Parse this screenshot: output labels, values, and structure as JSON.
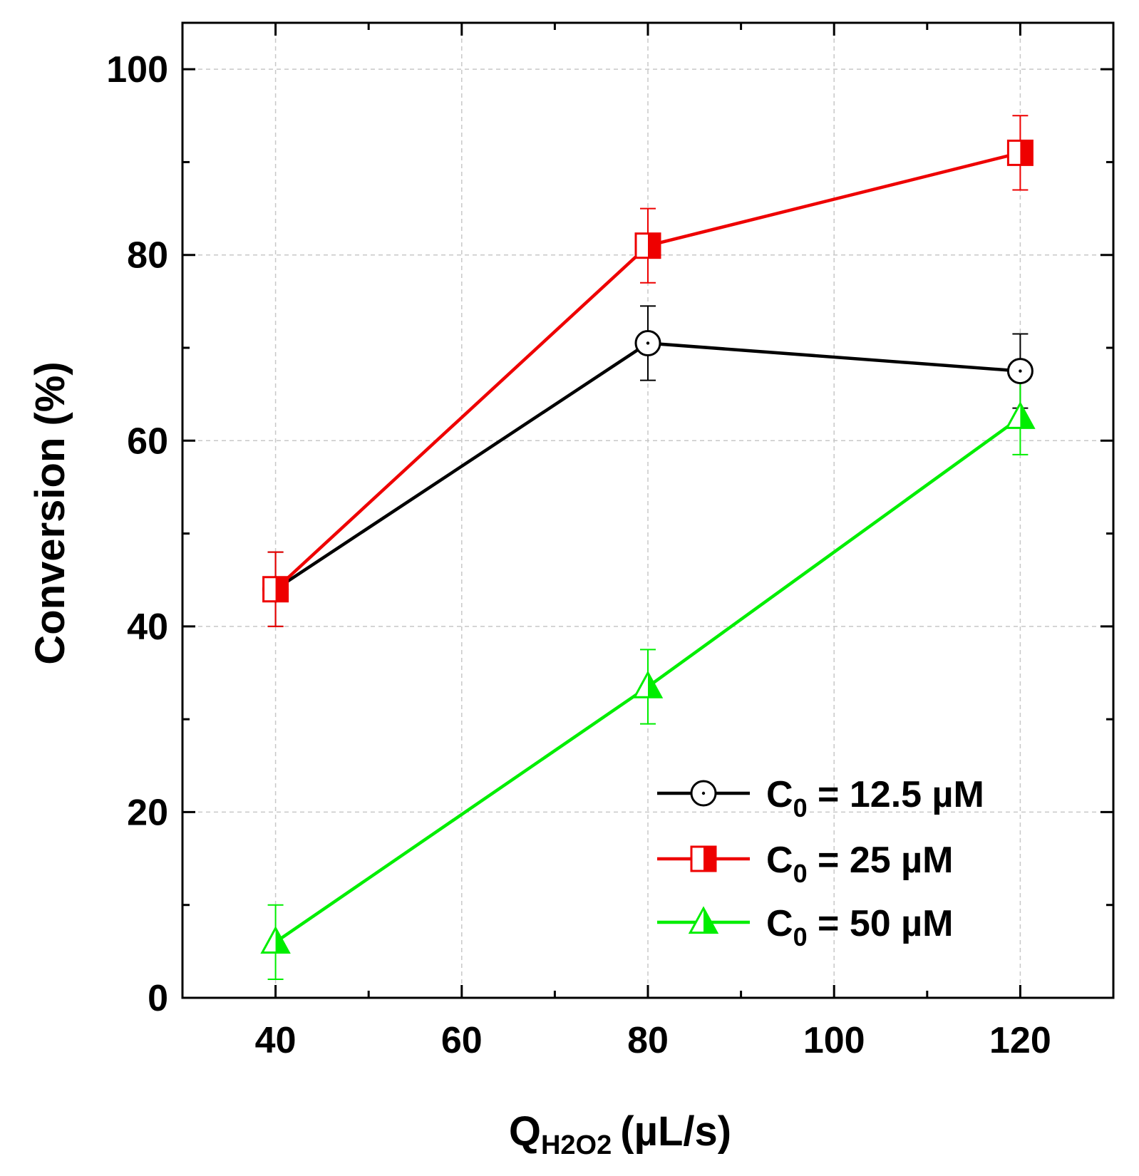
{
  "chart_data": {
    "type": "line",
    "title": "",
    "xlabel": {
      "main": "Q",
      "subscript": "H2O2",
      "suffix": "(µL/s)"
    },
    "ylabel": "Conversion (%)",
    "xlim": [
      30,
      130
    ],
    "ylim": [
      0,
      105
    ],
    "xticks": [
      40,
      60,
      80,
      100,
      120
    ],
    "xticks_minor": [
      50,
      70,
      90,
      110
    ],
    "yticks": [
      0,
      20,
      40,
      60,
      80,
      100
    ],
    "yticks_minor": [
      10,
      30,
      50,
      70,
      90
    ],
    "grid": true,
    "legend_position": "bottom-right",
    "colors": {
      "s1": "#000000",
      "s2": "#ee0000",
      "s3": "#00ee00",
      "grid": "#c8c8c8"
    },
    "x": [
      40,
      80,
      120
    ],
    "series": [
      {
        "name": "C0 = 12.5 µM",
        "legend": {
          "main": "C",
          "sub": "0",
          "rest": " = 12.5 µM"
        },
        "color": "#000000",
        "marker": "circle-dot",
        "values": [
          44,
          70.5,
          67.5
        ],
        "errors": [
          4,
          4,
          4
        ]
      },
      {
        "name": "C0 = 25 µM",
        "legend": {
          "main": "C",
          "sub": "0",
          "rest": " = 25 µM"
        },
        "color": "#ee0000",
        "marker": "square-half",
        "values": [
          44,
          81,
          91
        ],
        "errors": [
          4,
          4,
          4
        ]
      },
      {
        "name": "C0 = 50 µM",
        "legend": {
          "main": "C",
          "sub": "0",
          "rest": " = 50 µM"
        },
        "color": "#00ee00",
        "marker": "triangle-half",
        "values": [
          6,
          33.5,
          62.5
        ],
        "errors": [
          4,
          4,
          4
        ]
      }
    ]
  }
}
